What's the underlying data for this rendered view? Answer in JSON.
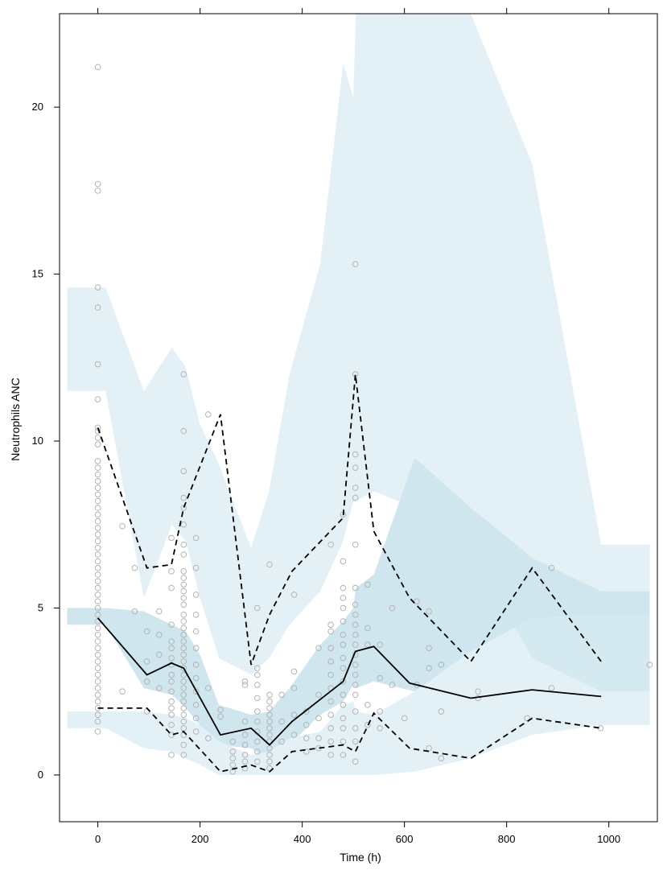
{
  "chart_data": {
    "type": "scatter",
    "title": "",
    "xlabel": "Time (h)",
    "ylabel": "Neutrophils ANC",
    "xlim": [
      -75,
      1095
    ],
    "ylim": [
      -1.4,
      22.8
    ],
    "x_ticks": [
      0,
      200,
      400,
      600,
      800,
      1000
    ],
    "y_ticks": [
      0,
      5,
      10,
      15,
      20
    ],
    "grid": false,
    "legend": "none",
    "colors": {
      "points": "#b3b3b3",
      "band_outer": "#e3f1f7",
      "band_median_pi": "#cfe6ee",
      "observed_line": "#000000"
    },
    "prediction_bands": [
      {
        "band": "upper",
        "x": [
          -60,
          -15,
          15,
          90,
          145,
          172,
          200,
          237,
          300,
          335,
          375,
          435,
          480,
          500,
          505,
          540,
          620,
          730,
          850,
          985,
          1080
        ],
        "lower": [
          11.5,
          11.5,
          11.5,
          5.3,
          7.5,
          7.0,
          5.3,
          3.5,
          3.0,
          3.5,
          4.5,
          5.5,
          7.0,
          8.2,
          8.2,
          8.5,
          8.0,
          6.5,
          4.8,
          3.2,
          3.2
        ],
        "upper": [
          14.6,
          14.6,
          14.6,
          11.5,
          12.8,
          12.2,
          10.5,
          9.3,
          6.8,
          8.5,
          12.0,
          15.3,
          21.3,
          20.3,
          22.8,
          22.8,
          22.8,
          22.8,
          18.3,
          6.9,
          6.9
        ]
      },
      {
        "band": "median",
        "x": [
          -60,
          -15,
          15,
          90,
          145,
          172,
          200,
          237,
          300,
          335,
          375,
          435,
          480,
          500,
          505,
          540,
          620,
          730,
          850,
          985,
          1080
        ],
        "lower": [
          4.5,
          4.5,
          4.5,
          2.6,
          2.4,
          2.0,
          1.5,
          0.9,
          0.8,
          0.4,
          0.9,
          1.8,
          2.2,
          2.7,
          2.6,
          2.8,
          2.5,
          2.1,
          2.2,
          2.2,
          2.2
        ],
        "upper": [
          5.0,
          5.0,
          5.0,
          4.9,
          4.5,
          4.3,
          3.6,
          2.1,
          1.8,
          1.9,
          2.6,
          3.9,
          4.6,
          5.0,
          5.6,
          6.0,
          9.5,
          8.0,
          6.5,
          5.5,
          5.5
        ]
      },
      {
        "band": "lower",
        "x": [
          -60,
          -15,
          15,
          90,
          145,
          172,
          200,
          237,
          300,
          335,
          375,
          435,
          480,
          500,
          505,
          540,
          620,
          730,
          850,
          985,
          1080
        ],
        "lower": [
          1.4,
          1.4,
          1.4,
          0.8,
          0.7,
          0.5,
          0.3,
          0.0,
          0.0,
          0.0,
          0.0,
          0.0,
          0.0,
          0.0,
          0.0,
          0.0,
          0.1,
          0.5,
          1.2,
          1.5,
          1.5
        ],
        "upper": [
          1.9,
          1.9,
          1.9,
          1.9,
          1.8,
          1.7,
          1.5,
          1.0,
          0.6,
          0.7,
          1.1,
          1.3,
          2.1,
          2.2,
          1.9,
          1.8,
          2.5,
          3.7,
          4.7,
          4.8,
          4.8
        ]
      }
    ],
    "overlap_band": {
      "x": [
        620,
        730,
        850,
        985,
        1080
      ],
      "lower": [
        8.9,
        6.8,
        3.5,
        2.5,
        2.5
      ],
      "upper": [
        8.9,
        8.0,
        6.5,
        5.4,
        5.4
      ],
      "lower_edge": [
        8.9,
        6.8,
        3.5,
        2.5,
        2.5
      ]
    },
    "observed_lines": [
      {
        "style": "solid",
        "x": [
          0,
          96,
          144,
          168,
          240,
          300,
          336,
          380,
          480,
          504,
          540,
          610,
          730,
          850,
          985
        ],
        "y": [
          4.7,
          3.0,
          3.35,
          3.2,
          1.2,
          1.4,
          0.9,
          1.6,
          2.8,
          3.7,
          3.85,
          2.75,
          2.3,
          2.55,
          2.35
        ]
      },
      {
        "style": "dashed",
        "x": [
          0,
          96,
          144,
          168,
          240,
          300,
          336,
          380,
          480,
          504,
          540,
          610,
          730,
          850,
          985
        ],
        "y": [
          10.4,
          6.2,
          6.3,
          8.0,
          10.8,
          3.3,
          4.8,
          6.1,
          7.7,
          12.0,
          7.3,
          5.3,
          3.4,
          6.2,
          3.4
        ]
      },
      {
        "style": "dashed",
        "x": [
          0,
          96,
          144,
          168,
          240,
          300,
          336,
          380,
          480,
          504,
          540,
          610,
          730,
          850,
          985
        ],
        "y": [
          2.0,
          2.0,
          1.2,
          1.3,
          0.1,
          0.3,
          0.1,
          0.7,
          0.9,
          0.7,
          1.85,
          0.8,
          0.5,
          1.7,
          1.4
        ]
      }
    ],
    "points": [
      [
        0,
        21.2
      ],
      [
        0,
        17.7
      ],
      [
        0,
        17.5
      ],
      [
        0,
        14.6
      ],
      [
        0,
        14.0
      ],
      [
        0,
        12.3
      ],
      [
        0,
        11.25
      ],
      [
        0,
        10.4
      ],
      [
        0,
        10.3
      ],
      [
        0,
        10.1
      ],
      [
        0,
        9.9
      ],
      [
        0,
        9.4
      ],
      [
        0,
        9.2
      ],
      [
        0,
        9.0
      ],
      [
        0,
        8.8
      ],
      [
        0,
        8.6
      ],
      [
        0,
        8.4
      ],
      [
        0,
        8.2
      ],
      [
        0,
        8.0
      ],
      [
        0,
        7.8
      ],
      [
        0,
        7.6
      ],
      [
        0,
        7.4
      ],
      [
        0,
        7.2
      ],
      [
        0,
        7.0
      ],
      [
        0,
        6.8
      ],
      [
        0,
        6.6
      ],
      [
        0,
        6.4
      ],
      [
        0,
        6.2
      ],
      [
        0,
        6.0
      ],
      [
        0,
        5.8
      ],
      [
        0,
        5.6
      ],
      [
        0,
        5.4
      ],
      [
        0,
        5.2
      ],
      [
        0,
        5.0
      ],
      [
        0,
        4.8
      ],
      [
        0,
        4.6
      ],
      [
        0,
        4.4
      ],
      [
        0,
        4.2
      ],
      [
        0,
        4.0
      ],
      [
        0,
        3.8
      ],
      [
        0,
        3.6
      ],
      [
        0,
        3.4
      ],
      [
        0,
        3.2
      ],
      [
        0,
        3.0
      ],
      [
        0,
        2.8
      ],
      [
        0,
        2.6
      ],
      [
        0,
        2.4
      ],
      [
        0,
        2.2
      ],
      [
        0,
        2.0
      ],
      [
        0,
        1.8
      ],
      [
        0,
        1.6
      ],
      [
        0,
        1.3
      ],
      [
        48,
        7.45
      ],
      [
        48,
        2.5
      ],
      [
        72,
        6.2
      ],
      [
        72,
        4.9
      ],
      [
        96,
        4.3
      ],
      [
        96,
        3.4
      ],
      [
        96,
        2.8
      ],
      [
        96,
        1.9
      ],
      [
        120,
        4.9
      ],
      [
        120,
        4.2
      ],
      [
        120,
        3.6
      ],
      [
        120,
        2.6
      ],
      [
        144,
        7.1
      ],
      [
        144,
        6.1
      ],
      [
        144,
        5.6
      ],
      [
        144,
        4.5
      ],
      [
        144,
        4.0
      ],
      [
        144,
        3.8
      ],
      [
        144,
        3.5
      ],
      [
        144,
        3.3
      ],
      [
        144,
        3.0
      ],
      [
        144,
        2.8
      ],
      [
        144,
        2.5
      ],
      [
        144,
        2.2
      ],
      [
        144,
        2.0
      ],
      [
        144,
        1.8
      ],
      [
        144,
        1.5
      ],
      [
        144,
        1.2
      ],
      [
        144,
        0.6
      ],
      [
        168,
        12.0
      ],
      [
        168,
        10.3
      ],
      [
        168,
        9.1
      ],
      [
        168,
        8.3
      ],
      [
        168,
        8.0
      ],
      [
        168,
        7.5
      ],
      [
        168,
        6.9
      ],
      [
        168,
        6.6
      ],
      [
        168,
        6.1
      ],
      [
        168,
        5.9
      ],
      [
        168,
        5.7
      ],
      [
        168,
        5.5
      ],
      [
        168,
        5.3
      ],
      [
        168,
        5.1
      ],
      [
        168,
        4.8
      ],
      [
        168,
        4.6
      ],
      [
        168,
        4.4
      ],
      [
        168,
        4.2
      ],
      [
        168,
        4.0
      ],
      [
        168,
        3.8
      ],
      [
        168,
        3.6
      ],
      [
        168,
        3.4
      ],
      [
        168,
        3.2
      ],
      [
        168,
        3.0
      ],
      [
        168,
        2.8
      ],
      [
        168,
        2.6
      ],
      [
        168,
        2.4
      ],
      [
        168,
        2.2
      ],
      [
        168,
        2.0
      ],
      [
        168,
        1.8
      ],
      [
        168,
        1.6
      ],
      [
        168,
        1.4
      ],
      [
        168,
        1.2
      ],
      [
        168,
        0.9
      ],
      [
        168,
        0.6
      ],
      [
        192,
        7.1
      ],
      [
        192,
        6.2
      ],
      [
        192,
        5.4
      ],
      [
        192,
        4.8
      ],
      [
        192,
        4.3
      ],
      [
        192,
        3.8
      ],
      [
        192,
        3.3
      ],
      [
        192,
        2.9
      ],
      [
        192,
        2.5
      ],
      [
        192,
        2.1
      ],
      [
        192,
        1.7
      ],
      [
        192,
        1.3
      ],
      [
        216,
        10.8
      ],
      [
        216,
        2.6
      ],
      [
        216,
        1.1
      ],
      [
        240,
        1.95
      ],
      [
        240,
        1.75
      ],
      [
        264,
        1.0
      ],
      [
        264,
        0.7
      ],
      [
        264,
        0.5
      ],
      [
        264,
        0.3
      ],
      [
        264,
        0.1
      ],
      [
        288,
        2.8
      ],
      [
        288,
        2.7
      ],
      [
        288,
        1.6
      ],
      [
        288,
        1.2
      ],
      [
        288,
        0.9
      ],
      [
        288,
        0.6
      ],
      [
        288,
        0.4
      ],
      [
        288,
        0.2
      ],
      [
        312,
        5.0
      ],
      [
        312,
        3.2
      ],
      [
        312,
        3.0
      ],
      [
        312,
        2.7
      ],
      [
        312,
        2.3
      ],
      [
        312,
        1.9
      ],
      [
        312,
        1.6
      ],
      [
        312,
        1.3
      ],
      [
        312,
        1.0
      ],
      [
        312,
        0.7
      ],
      [
        312,
        0.4
      ],
      [
        336,
        6.3
      ],
      [
        336,
        2.4
      ],
      [
        336,
        2.2
      ],
      [
        336,
        2.0
      ],
      [
        336,
        1.8
      ],
      [
        336,
        1.6
      ],
      [
        336,
        1.4
      ],
      [
        336,
        1.2
      ],
      [
        336,
        1.0
      ],
      [
        336,
        0.8
      ],
      [
        336,
        0.6
      ],
      [
        336,
        0.4
      ],
      [
        336,
        0.2
      ],
      [
        360,
        2.4
      ],
      [
        360,
        1.6
      ],
      [
        360,
        1.0
      ],
      [
        384,
        5.4
      ],
      [
        384,
        3.1
      ],
      [
        384,
        2.6
      ],
      [
        384,
        1.8
      ],
      [
        384,
        1.2
      ],
      [
        408,
        1.9
      ],
      [
        408,
        1.5
      ],
      [
        408,
        1.1
      ],
      [
        408,
        0.7
      ],
      [
        432,
        3.8
      ],
      [
        432,
        2.4
      ],
      [
        432,
        1.7
      ],
      [
        432,
        1.1
      ],
      [
        432,
        0.8
      ],
      [
        456,
        6.9
      ],
      [
        456,
        4.5
      ],
      [
        456,
        4.3
      ],
      [
        456,
        3.8
      ],
      [
        456,
        3.4
      ],
      [
        456,
        3.0
      ],
      [
        456,
        2.6
      ],
      [
        456,
        2.2
      ],
      [
        456,
        1.8
      ],
      [
        456,
        1.4
      ],
      [
        456,
        1.0
      ],
      [
        456,
        0.6
      ],
      [
        480,
        7.8
      ],
      [
        480,
        6.4
      ],
      [
        480,
        5.6
      ],
      [
        480,
        5.3
      ],
      [
        480,
        5.0
      ],
      [
        480,
        4.6
      ],
      [
        480,
        4.2
      ],
      [
        480,
        3.9
      ],
      [
        480,
        3.5
      ],
      [
        480,
        3.2
      ],
      [
        480,
        2.8
      ],
      [
        480,
        2.4
      ],
      [
        480,
        2.1
      ],
      [
        480,
        1.7
      ],
      [
        480,
        1.4
      ],
      [
        480,
        1.0
      ],
      [
        480,
        0.6
      ],
      [
        504,
        15.3
      ],
      [
        504,
        12.0
      ],
      [
        504,
        9.6
      ],
      [
        504,
        9.2
      ],
      [
        504,
        8.6
      ],
      [
        504,
        8.3
      ],
      [
        504,
        6.9
      ],
      [
        504,
        5.6
      ],
      [
        504,
        5.1
      ],
      [
        504,
        4.8
      ],
      [
        504,
        4.5
      ],
      [
        504,
        4.2
      ],
      [
        504,
        3.9
      ],
      [
        504,
        3.6
      ],
      [
        504,
        3.3
      ],
      [
        504,
        3.0
      ],
      [
        504,
        2.7
      ],
      [
        504,
        2.4
      ],
      [
        504,
        1.9
      ],
      [
        504,
        1.4
      ],
      [
        504,
        1.0
      ],
      [
        504,
        0.4
      ],
      [
        528,
        5.7
      ],
      [
        528,
        4.4
      ],
      [
        528,
        3.9
      ],
      [
        528,
        2.1
      ],
      [
        528,
        1.5
      ],
      [
        552,
        3.9
      ],
      [
        552,
        2.9
      ],
      [
        552,
        1.9
      ],
      [
        552,
        1.4
      ],
      [
        576,
        5.0
      ],
      [
        576,
        2.7
      ],
      [
        600,
        1.7
      ],
      [
        624,
        5.2
      ],
      [
        624,
        2.7
      ],
      [
        648,
        4.9
      ],
      [
        648,
        3.8
      ],
      [
        648,
        3.2
      ],
      [
        648,
        0.8
      ],
      [
        672,
        3.3
      ],
      [
        672,
        1.9
      ],
      [
        672,
        0.5
      ],
      [
        744,
        2.5
      ],
      [
        744,
        2.3
      ],
      [
        840,
        1.7
      ],
      [
        888,
        6.2
      ],
      [
        888,
        2.6
      ],
      [
        984,
        1.4
      ],
      [
        1080,
        3.3
      ]
    ]
  }
}
